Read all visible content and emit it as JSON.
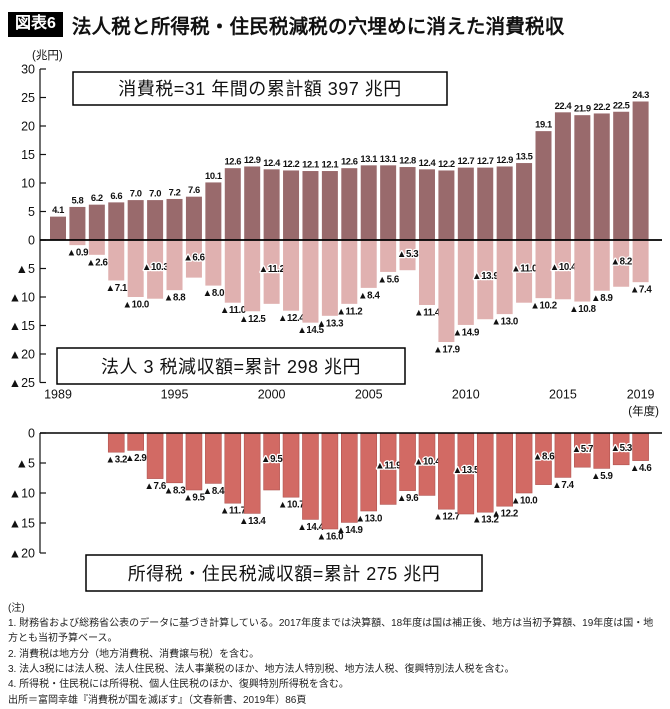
{
  "header": {
    "figure_label": "図表6",
    "title": "法人税と所得税・住民税減税の穴埋めに消えた消費税収"
  },
  "chart_data": [
    {
      "type": "bar",
      "title": "消費税=31 年間の累計額 397 兆円",
      "unit_label": "(兆円)",
      "ylim": [
        -25,
        30
      ],
      "ytick_step": 5,
      "negative_prefix": "▲",
      "xticks": [
        1989,
        1995,
        2000,
        2005,
        2010,
        2015,
        2019
      ],
      "x_axis_note": "(年度)",
      "x_range": [
        1989,
        2019
      ],
      "grid": false,
      "series": [
        {
          "name": "消費税収",
          "color": "#996A6C",
          "start_year": 1989,
          "values": [
            4.1,
            5.8,
            6.2,
            6.6,
            7.0,
            7.0,
            7.2,
            7.6,
            10.1,
            12.6,
            12.9,
            12.4,
            12.2,
            12.1,
            12.1,
            12.6,
            13.1,
            13.1,
            12.8,
            12.4,
            12.2,
            12.7,
            12.7,
            12.9,
            13.5,
            19.1,
            22.4,
            21.9,
            22.2,
            22.5,
            24.3
          ]
        },
        {
          "name": "法人3税減収額",
          "color": "#E0B1B0",
          "start_year": 1990,
          "values": [
            -0.9,
            -2.6,
            -7.1,
            -10.0,
            -10.3,
            -8.8,
            -6.6,
            -8.0,
            -11.0,
            -12.5,
            -11.2,
            -12.4,
            -14.5,
            -13.3,
            -11.2,
            -8.4,
            -5.6,
            -5.3,
            -11.4,
            -17.9,
            -14.9,
            -13.9,
            -13.0,
            -11.0,
            -10.2,
            -10.4,
            -10.8,
            -8.9,
            -8.2,
            -7.4
          ],
          "halo_label_years": [
            1994,
            1996,
            2000,
            2007,
            2011,
            2013,
            2015,
            2018
          ],
          "box_label": "法人 3 税減収額=累計 298 兆円"
        }
      ]
    },
    {
      "type": "bar",
      "ylim": [
        -20,
        0
      ],
      "ytick_step": 5,
      "negative_prefix": "▲",
      "x_range": [
        1989,
        2019
      ],
      "grid": false,
      "series": [
        {
          "name": "所得税・住民税減収額",
          "color": "#D26A64",
          "start_year": 1992,
          "values": [
            -3.2,
            -2.9,
            -7.6,
            -8.3,
            -9.5,
            -8.4,
            -11.7,
            -13.4,
            -9.5,
            -10.7,
            -14.4,
            -16.0,
            -14.9,
            -13.0,
            -11.9,
            -9.6,
            -10.4,
            -12.7,
            -13.5,
            -13.2,
            -12.2,
            -10.0,
            -8.6,
            -7.4,
            -5.7,
            -5.9,
            -5.3,
            -4.6
          ],
          "halo_label_years": [
            2000,
            2006,
            2008,
            2010,
            2014,
            2016,
            2018
          ],
          "box_label": "所得税・住民税減収額=累計 275 兆円"
        }
      ]
    }
  ],
  "footnotes": {
    "heading": "(注)",
    "items": [
      "1. 財務省および総務省公表のデータに基づき計算している。2017年度までは決算額、18年度は国は補正後、地方は当初予算額、19年度は国・地方とも当初予算ベース。",
      "2. 消費税は地方分（地方消費税、消費譲与税）を含む。",
      "3. 法人3税には法人税、法人住民税、法人事業税のほか、地方法人特別税、地方法人税、復興特別法人税を含む。",
      "4. 所得税・住民税には所得税、個人住民税のほか、復興特別所得税を含む。"
    ],
    "source": "出所＝富岡幸雄『消費税が国を滅ぼす』（文春新書、2019年）86頁"
  }
}
